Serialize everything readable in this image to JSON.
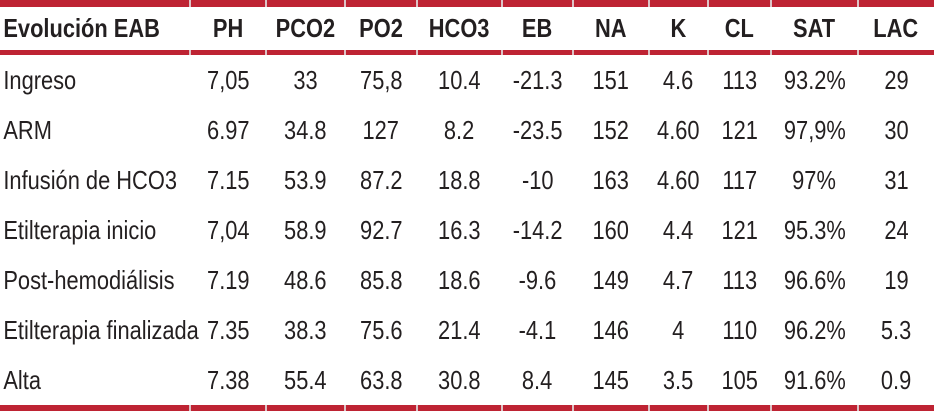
{
  "chart_data": {
    "type": "table",
    "title": "Evolución EAB",
    "columns": [
      "Evolución EAB",
      "PH",
      "PCO2",
      "PO2",
      "HCO3",
      "EB",
      "NA",
      "K",
      "CL",
      "SAT",
      "LAC"
    ],
    "rows": [
      {
        "label": "Ingreso",
        "values": [
          "7,05",
          "33",
          "75,8",
          "10.4",
          "-21.3",
          "151",
          "4.6",
          "113",
          "93.2%",
          "29"
        ]
      },
      {
        "label": "ARM",
        "values": [
          "6.97",
          "34.8",
          "127",
          "8.2",
          "-23.5",
          "152",
          "4.60",
          "121",
          "97,9%",
          "30"
        ]
      },
      {
        "label": "Infusión de HCO3",
        "values": [
          "7.15",
          "53.9",
          "87.2",
          "18.8",
          "-10",
          "163",
          "4.60",
          "117",
          "97%",
          "31"
        ]
      },
      {
        "label": "Etilterapia inicio",
        "values": [
          "7,04",
          "58.9",
          "92.7",
          "16.3",
          "-14.2",
          "160",
          "4.4",
          "121",
          "95.3%",
          "24"
        ]
      },
      {
        "label": "Post-hemodiálisis",
        "values": [
          "7.19",
          "48.6",
          "85.8",
          "18.6",
          "-9.6",
          "149",
          "4.7",
          "113",
          "96.6%",
          "19"
        ]
      },
      {
        "label": "Etilterapia finalizada",
        "values": [
          "7.35",
          "38.3",
          "75.6",
          "21.4",
          "-4.1",
          "146",
          "4",
          "110",
          "96.2%",
          "5.3"
        ]
      },
      {
        "label": "Alta",
        "values": [
          "7.38",
          "55.4",
          "63.8",
          "30.8",
          "8.4",
          "145",
          "3.5",
          "105",
          "91.6%",
          "0.9"
        ]
      }
    ],
    "colors": {
      "rule_red": "#be2333",
      "rule_break": "#dcc3c6",
      "text": "#231f20",
      "background": "#ffffff"
    }
  }
}
